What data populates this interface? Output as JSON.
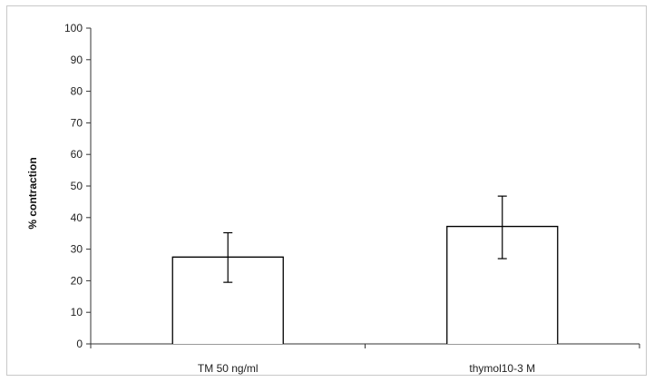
{
  "chart_data": {
    "type": "bar",
    "title": "",
    "xlabel": "",
    "ylabel": "% contraction",
    "ylim": [
      0,
      100
    ],
    "yticks": [
      0,
      10,
      20,
      30,
      40,
      50,
      60,
      70,
      80,
      90,
      100
    ],
    "categories": [
      "TM 50 ng/ml",
      "thymol10-3 M"
    ],
    "values": [
      27.5,
      37.2
    ],
    "error_low": [
      19.5,
      27.0
    ],
    "error_high": [
      35.2,
      46.8
    ],
    "grid": false,
    "legend": "none",
    "colors": {
      "bar_fill": "#ffffff",
      "bar_stroke": "#000000",
      "axis": "#333333",
      "frame": "#c8c8c8"
    }
  }
}
